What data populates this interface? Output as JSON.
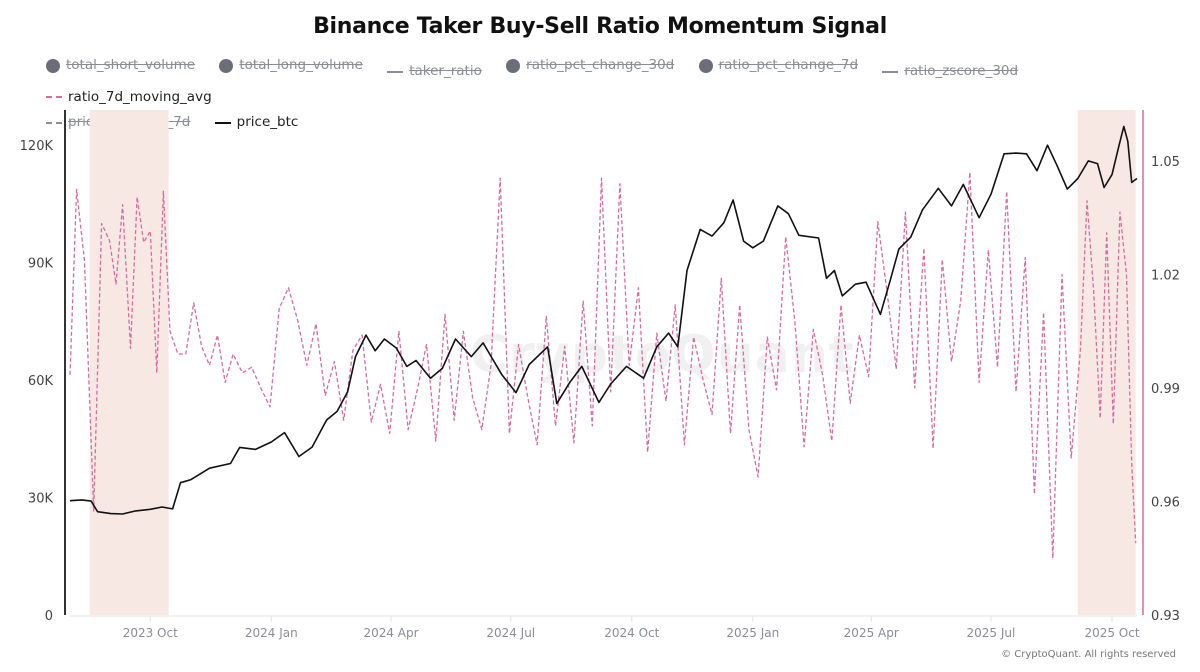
{
  "chart_data": {
    "type": "line",
    "title": "Binance Taker Buy-Sell Ratio Momentum Signal",
    "legend": [
      {
        "name": "total_short_volume",
        "marker": "dot",
        "visible": false
      },
      {
        "name": "total_long_volume",
        "marker": "dot",
        "visible": false
      },
      {
        "name": "taker_ratio",
        "marker": "line",
        "visible": false
      },
      {
        "name": "ratio_pct_change_30d",
        "marker": "dot",
        "visible": false
      },
      {
        "name": "ratio_pct_change_7d",
        "marker": "dot",
        "visible": false
      },
      {
        "name": "ratio_zscore_30d",
        "marker": "line",
        "visible": false
      },
      {
        "name": "ratio_7d_moving_avg",
        "marker": "dash",
        "visible": true,
        "color": "#d66aa1"
      },
      {
        "name": "price_volatility_7d",
        "marker": "dash",
        "visible": false
      },
      {
        "name": "price_btc",
        "marker": "line",
        "visible": true,
        "color": "#111111"
      }
    ],
    "legend_placement": "top-left",
    "x_range": [
      "2023-08-01",
      "2025-10-20"
    ],
    "x_ticks": [
      "2023 Oct",
      "2024 Jan",
      "2024 Apr",
      "2024 Jul",
      "2024 Oct",
      "2025 Jan",
      "2025 Apr",
      "2025 Jul",
      "2025 Oct"
    ],
    "x_tick_dates": [
      "2023-10-01",
      "2024-01-01",
      "2024-04-01",
      "2024-07-01",
      "2024-10-01",
      "2025-01-01",
      "2025-04-01",
      "2025-07-01",
      "2025-10-01"
    ],
    "y_left": {
      "label": "",
      "ticks": [
        "0",
        "30K",
        "60K",
        "90K",
        "120K"
      ],
      "tick_values": [
        0,
        30000,
        60000,
        90000,
        120000
      ],
      "range": [
        0,
        129000
      ]
    },
    "y_right": {
      "label": "",
      "ticks": [
        "0.93",
        "0.96",
        "0.99",
        "1.02",
        "1.05"
      ],
      "tick_values": [
        0.93,
        0.96,
        0.99,
        1.02,
        1.05
      ],
      "range": [
        0.93,
        1.0635
      ],
      "color": "#d66aa1"
    },
    "shaded_regions": [
      {
        "start": "2023-08-16",
        "end": "2023-10-15",
        "color": "#f8e8e4"
      },
      {
        "start": "2025-09-05",
        "end": "2025-10-19",
        "color": "#f8e8e4"
      }
    ],
    "grid": false,
    "series": [
      {
        "name": "price_btc",
        "axis": "left",
        "style": "solid",
        "color": "#111111",
        "x": [
          "2023-08-01",
          "2023-08-10",
          "2023-08-17",
          "2023-08-22",
          "2023-09-01",
          "2023-09-10",
          "2023-09-20",
          "2023-10-01",
          "2023-10-10",
          "2023-10-18",
          "2023-10-24",
          "2023-11-01",
          "2023-11-15",
          "2023-12-01",
          "2023-12-08",
          "2023-12-20",
          "2024-01-01",
          "2024-01-11",
          "2024-01-22",
          "2024-02-01",
          "2024-02-12",
          "2024-02-20",
          "2024-02-28",
          "2024-03-05",
          "2024-03-13",
          "2024-03-20",
          "2024-03-27",
          "2024-04-05",
          "2024-04-13",
          "2024-04-20",
          "2024-05-01",
          "2024-05-10",
          "2024-05-20",
          "2024-06-01",
          "2024-06-10",
          "2024-06-24",
          "2024-07-05",
          "2024-07-15",
          "2024-07-29",
          "2024-08-05",
          "2024-08-15",
          "2024-08-24",
          "2024-09-06",
          "2024-09-15",
          "2024-09-27",
          "2024-10-10",
          "2024-10-20",
          "2024-10-29",
          "2024-11-05",
          "2024-11-12",
          "2024-11-22",
          "2024-12-01",
          "2024-12-10",
          "2024-12-17",
          "2024-12-25",
          "2025-01-01",
          "2025-01-09",
          "2025-01-20",
          "2025-01-28",
          "2025-02-05",
          "2025-02-20",
          "2025-02-26",
          "2025-03-04",
          "2025-03-10",
          "2025-03-20",
          "2025-03-28",
          "2025-04-08",
          "2025-04-15",
          "2025-04-22",
          "2025-05-01",
          "2025-05-10",
          "2025-05-22",
          "2025-06-01",
          "2025-06-10",
          "2025-06-22",
          "2025-07-01",
          "2025-07-11",
          "2025-07-20",
          "2025-07-28",
          "2025-08-05",
          "2025-08-13",
          "2025-08-20",
          "2025-08-28",
          "2025-09-05",
          "2025-09-13",
          "2025-09-20",
          "2025-09-25",
          "2025-10-01",
          "2025-10-06",
          "2025-10-10",
          "2025-10-13",
          "2025-10-16",
          "2025-10-20"
        ],
        "values": [
          29200,
          29400,
          29100,
          26400,
          25900,
          25800,
          26600,
          27000,
          27600,
          27100,
          33800,
          34600,
          37500,
          38700,
          42800,
          42300,
          44200,
          46600,
          40500,
          42900,
          49800,
          52000,
          57000,
          66000,
          71500,
          67500,
          70500,
          68200,
          63500,
          65000,
          60500,
          63000,
          70500,
          66000,
          69500,
          61500,
          56800,
          64000,
          68500,
          54000,
          59500,
          63500,
          54300,
          59000,
          63500,
          60500,
          68500,
          72000,
          68500,
          88000,
          98500,
          96800,
          100200,
          106000,
          95500,
          93800,
          95500,
          104500,
          102500,
          97000,
          96300,
          86000,
          88000,
          81500,
          84500,
          85000,
          76800,
          85000,
          93500,
          96500,
          103500,
          109000,
          104500,
          110000,
          101500,
          107500,
          117800,
          118000,
          117800,
          113500,
          120000,
          115000,
          108800,
          111500,
          116000,
          115300,
          109200,
          112500,
          119500,
          124800,
          121000,
          110500,
          111500
        ]
      },
      {
        "name": "ratio_7d_moving_avg",
        "axis": "right",
        "style": "dashed",
        "color": "#d66aa1",
        "x": [
          "2023-08-01",
          "2023-08-06",
          "2023-08-12",
          "2023-08-19",
          "2023-08-25",
          "2023-08-31",
          "2023-09-05",
          "2023-09-10",
          "2023-09-16",
          "2023-09-21",
          "2023-09-26",
          "2023-10-01",
          "2023-10-06",
          "2023-10-11",
          "2023-10-16",
          "2023-10-22",
          "2023-10-28",
          "2023-11-03",
          "2023-11-09",
          "2023-11-15",
          "2023-11-21",
          "2023-11-27",
          "2023-12-03",
          "2023-12-10",
          "2023-12-17",
          "2023-12-24",
          "2023-12-31",
          "2024-01-07",
          "2024-01-14",
          "2024-01-21",
          "2024-01-28",
          "2024-02-04",
          "2024-02-11",
          "2024-02-18",
          "2024-02-25",
          "2024-03-03",
          "2024-03-10",
          "2024-03-17",
          "2024-03-24",
          "2024-03-31",
          "2024-04-07",
          "2024-04-14",
          "2024-04-21",
          "2024-04-28",
          "2024-05-05",
          "2024-05-12",
          "2024-05-19",
          "2024-05-26",
          "2024-06-02",
          "2024-06-09",
          "2024-06-16",
          "2024-06-23",
          "2024-06-30",
          "2024-07-07",
          "2024-07-14",
          "2024-07-21",
          "2024-07-28",
          "2024-08-04",
          "2024-08-11",
          "2024-08-18",
          "2024-08-25",
          "2024-09-01",
          "2024-09-08",
          "2024-09-15",
          "2024-09-22",
          "2024-09-29",
          "2024-10-06",
          "2024-10-13",
          "2024-10-20",
          "2024-10-27",
          "2024-11-03",
          "2024-11-10",
          "2024-11-17",
          "2024-11-24",
          "2024-12-01",
          "2024-12-08",
          "2024-12-15",
          "2024-12-22",
          "2024-12-29",
          "2025-01-05",
          "2025-01-12",
          "2025-01-19",
          "2025-01-26",
          "2025-02-02",
          "2025-02-09",
          "2025-02-16",
          "2025-02-23",
          "2025-03-02",
          "2025-03-09",
          "2025-03-16",
          "2025-03-23",
          "2025-03-30",
          "2025-04-06",
          "2025-04-13",
          "2025-04-20",
          "2025-04-27",
          "2025-05-04",
          "2025-05-11",
          "2025-05-18",
          "2025-05-25",
          "2025-06-01",
          "2025-06-08",
          "2025-06-15",
          "2025-06-22",
          "2025-06-29",
          "2025-07-06",
          "2025-07-13",
          "2025-07-20",
          "2025-07-27",
          "2025-08-03",
          "2025-08-10",
          "2025-08-17",
          "2025-08-24",
          "2025-08-31",
          "2025-09-07",
          "2025-09-12",
          "2025-09-17",
          "2025-09-22",
          "2025-09-27",
          "2025-10-02",
          "2025-10-07",
          "2025-10-12",
          "2025-10-16",
          "2025-10-19"
        ],
        "values": [
          0.9935,
          1.0425,
          1.0235,
          0.9575,
          1.0335,
          1.029,
          1.0175,
          1.0385,
          1.0005,
          1.0405,
          1.0285,
          1.0315,
          0.994,
          1.042,
          1.005,
          0.999,
          0.999,
          1.0125,
          1.001,
          0.996,
          1.004,
          0.9915,
          0.999,
          0.994,
          0.9955,
          0.99,
          0.985,
          1.011,
          1.0165,
          1.008,
          0.996,
          1.007,
          0.988,
          0.997,
          0.9815,
          1.0,
          1.004,
          0.981,
          0.991,
          0.978,
          1.005,
          0.979,
          0.9895,
          1.0015,
          0.976,
          1.0095,
          0.9815,
          1.005,
          0.9875,
          0.979,
          0.996,
          1.0455,
          0.978,
          1.0015,
          0.9875,
          0.975,
          1.009,
          0.98,
          1.001,
          0.9755,
          1.013,
          0.98,
          1.0455,
          0.989,
          1.044,
          0.996,
          1.0165,
          0.973,
          1.0045,
          0.9865,
          1.012,
          0.975,
          1.0035,
          0.9925,
          0.983,
          1.019,
          0.978,
          1.012,
          0.979,
          0.9665,
          1.0035,
          0.9895,
          1.03,
          1.0075,
          0.9745,
          1.0055,
          0.9935,
          0.976,
          1.012,
          0.986,
          1.004,
          0.993,
          1.034,
          1.0155,
          0.995,
          1.0365,
          0.99,
          1.027,
          0.974,
          1.024,
          0.997,
          1.013,
          1.047,
          0.9915,
          1.0265,
          0.9955,
          1.042,
          0.989,
          1.0245,
          0.962,
          1.01,
          0.945,
          1.02,
          0.9715,
          1.0,
          1.0395,
          1.016,
          0.982,
          1.031,
          0.9805,
          1.0365,
          1.02,
          0.97,
          0.949
        ]
      }
    ]
  },
  "watermark": "CryptoQuant",
  "credit": "© CryptoQuant. All rights reserved"
}
